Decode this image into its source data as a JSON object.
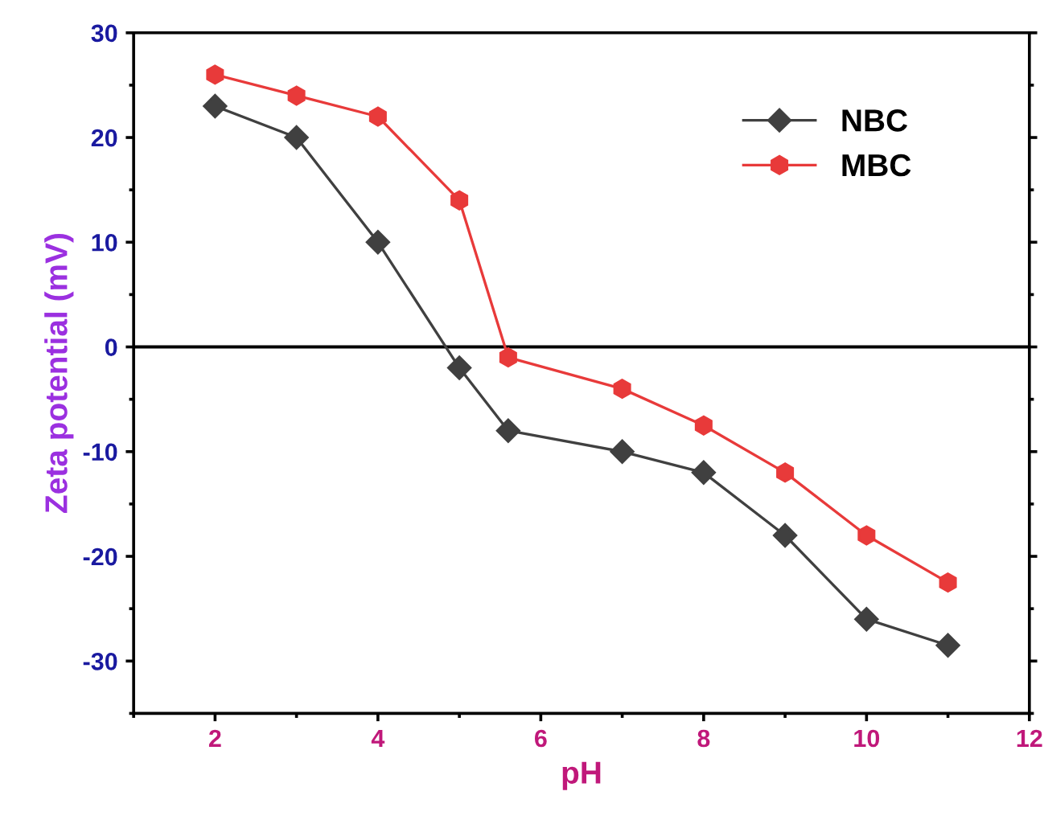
{
  "chart_data": {
    "type": "line",
    "xlabel": "pH",
    "ylabel": "Zeta potential (mV)",
    "xlim": [
      1,
      12
    ],
    "xticks": [
      2,
      4,
      6,
      8,
      10,
      12
    ],
    "ylim": [
      -35,
      30
    ],
    "yticks": [
      -30,
      -20,
      -10,
      0,
      10,
      20,
      30
    ],
    "grid": false,
    "legend": "top right",
    "series": [
      {
        "name": "NBC",
        "color": "#404040",
        "marker": "diamond",
        "x": [
          2,
          3,
          4,
          5,
          5.6,
          7,
          8,
          9,
          10,
          11
        ],
        "values": [
          23,
          20,
          10,
          -2,
          -8,
          -10,
          -12,
          -18,
          -26,
          -28.5
        ]
      },
      {
        "name": "MBC",
        "color": "#e83a3a",
        "marker": "circle",
        "x": [
          2,
          3,
          4,
          5,
          5.6,
          7,
          8,
          9,
          10,
          11
        ],
        "values": [
          26,
          24,
          22,
          14,
          -1,
          -4,
          -7.5,
          -12,
          -18,
          -22.5
        ]
      }
    ],
    "ref_lines": [
      {
        "axis": "y",
        "value": 0,
        "color": "#000000",
        "line_style": "solid"
      }
    ]
  }
}
